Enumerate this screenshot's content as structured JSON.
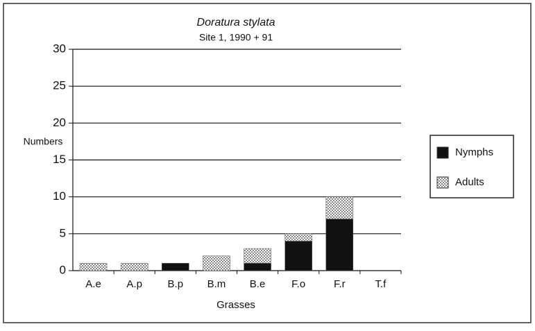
{
  "chart_data": {
    "type": "stacked_bar",
    "title": "Doratura stylata",
    "subtitle": "Site 1, 1990 + 91",
    "x_label": "Grasses",
    "y_label": "Numbers",
    "categories": [
      "A.e",
      "A.p",
      "B.p",
      "B.m",
      "B.e",
      "F.o",
      "F.r",
      "T.f"
    ],
    "series": [
      {
        "name": "Nymphs",
        "color": "#111111",
        "values": [
          0,
          0,
          1,
          0,
          1,
          4,
          7,
          0
        ]
      },
      {
        "name": "Adults",
        "color": "#888888",
        "values": [
          1,
          1,
          0,
          2,
          2,
          1,
          3,
          0
        ]
      }
    ],
    "ylim": [
      0,
      30
    ],
    "yticks": [
      0,
      5,
      10,
      15,
      20,
      25,
      30
    ],
    "grid": true,
    "legend": "right"
  }
}
